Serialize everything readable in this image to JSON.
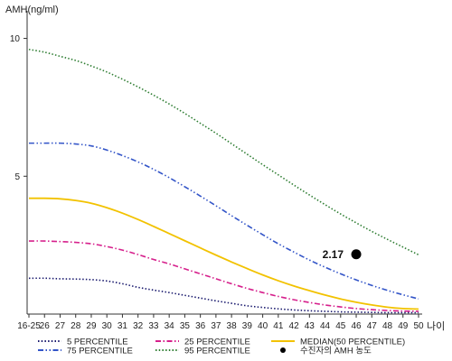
{
  "chart_data": {
    "type": "line",
    "ylabel": "AMH(ng/ml)",
    "xlabel": "나이",
    "ylim": [
      0,
      11
    ],
    "yticks": [
      5,
      10
    ],
    "x_categories": [
      "16-25",
      "26",
      "27",
      "28",
      "29",
      "30",
      "31",
      "32",
      "33",
      "34",
      "35",
      "36",
      "37",
      "38",
      "39",
      "40",
      "41",
      "42",
      "43",
      "44",
      "45",
      "46",
      "47",
      "48",
      "49",
      "50"
    ],
    "series": [
      {
        "name": "5 PERCENTILE",
        "color": "#1a1a6e",
        "dash": "dotted",
        "values": [
          1.3,
          1.3,
          1.28,
          1.27,
          1.25,
          1.2,
          1.1,
          0.97,
          0.87,
          0.78,
          0.68,
          0.58,
          0.48,
          0.39,
          0.3,
          0.24,
          0.19,
          0.15,
          0.12,
          0.1,
          0.08,
          0.07,
          0.06,
          0.05,
          0.05,
          0.05
        ]
      },
      {
        "name": "25 PERCENTILE",
        "color": "#d6208c",
        "dash": "dashdot",
        "values": [
          2.65,
          2.65,
          2.63,
          2.6,
          2.55,
          2.45,
          2.32,
          2.16,
          1.98,
          1.82,
          1.64,
          1.46,
          1.28,
          1.1,
          0.93,
          0.78,
          0.64,
          0.52,
          0.42,
          0.33,
          0.26,
          0.2,
          0.16,
          0.13,
          0.11,
          0.1
        ]
      },
      {
        "name": "MEDIAN(50 PERCENTILE)",
        "color": "#f2c200",
        "dash": "solid",
        "values": [
          4.2,
          4.2,
          4.18,
          4.12,
          4.02,
          3.86,
          3.66,
          3.43,
          3.18,
          2.92,
          2.66,
          2.4,
          2.14,
          1.89,
          1.65,
          1.42,
          1.21,
          1.02,
          0.85,
          0.69,
          0.55,
          0.43,
          0.33,
          0.25,
          0.2,
          0.18
        ]
      },
      {
        "name": "75 PERCENTILE",
        "color": "#3355c8",
        "dash": "dashdotdot",
        "values": [
          6.2,
          6.2,
          6.2,
          6.17,
          6.1,
          5.95,
          5.75,
          5.52,
          5.25,
          4.95,
          4.62,
          4.28,
          3.93,
          3.57,
          3.22,
          2.88,
          2.55,
          2.25,
          1.96,
          1.7,
          1.46,
          1.24,
          1.04,
          0.86,
          0.7,
          0.55
        ]
      },
      {
        "name": "95 PERCENTILE",
        "color": "#2e7d32",
        "dash": "dotted",
        "values": [
          9.6,
          9.5,
          9.35,
          9.2,
          9.0,
          8.78,
          8.52,
          8.24,
          7.94,
          7.62,
          7.28,
          6.92,
          6.56,
          6.18,
          5.8,
          5.42,
          5.05,
          4.68,
          4.32,
          3.97,
          3.63,
          3.31,
          3.0,
          2.71,
          2.43,
          2.15
        ]
      }
    ],
    "marker": {
      "name": "수진자의 AMH 농도",
      "x": "46",
      "y": 2.17,
      "label": "2.17",
      "color": "#000000"
    }
  }
}
